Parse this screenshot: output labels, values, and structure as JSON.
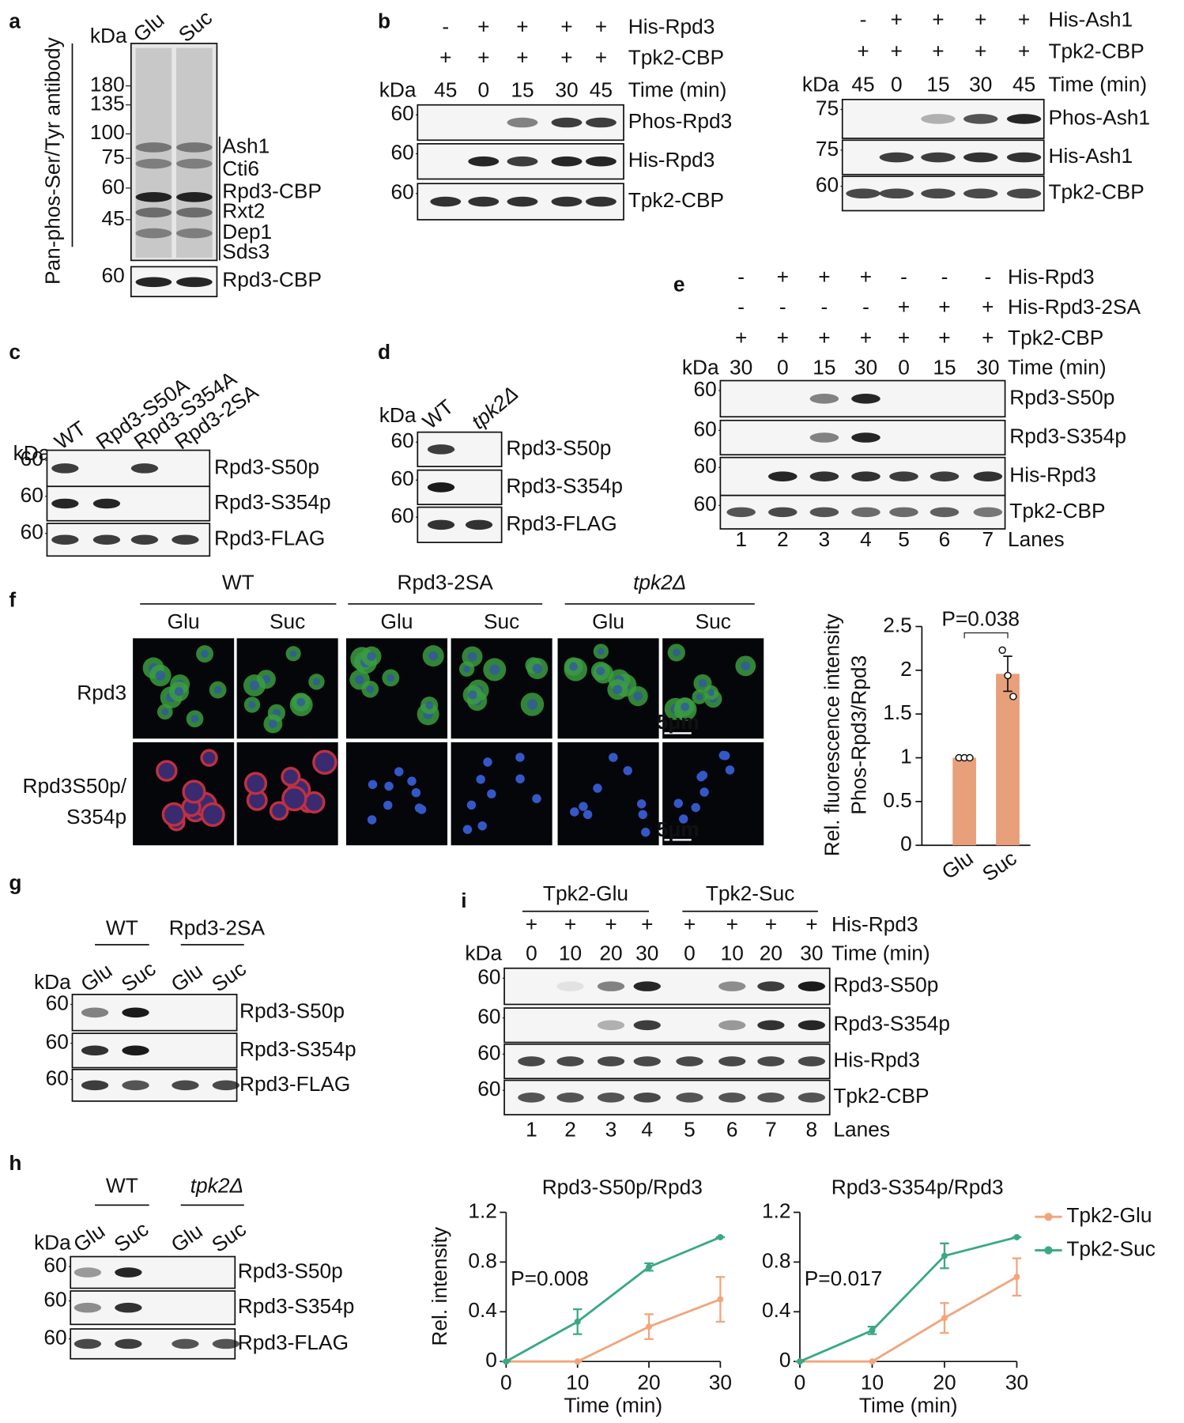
{
  "panels": {
    "a": {
      "label": "a",
      "antibody": "Pan-phos-Ser/Tyr antibody",
      "kda": "kDa",
      "lanes": [
        "Glu",
        "Suc"
      ],
      "markers": [
        "180",
        "135",
        "100",
        "75",
        "60",
        "45"
      ],
      "bands": [
        "Ash1",
        "Cti6",
        "Rpd3-CBP",
        "Rxt2",
        "Dep1",
        "Sds3"
      ],
      "loading": {
        "marker": "60",
        "name": "Rpd3-CBP"
      }
    },
    "b": {
      "label": "b",
      "blots": [
        {
          "rows": [
            {
              "signs": [
                "-",
                "+",
                "+",
                "+",
                "+"
              ],
              "name": "His-Rpd3"
            },
            {
              "signs": [
                "+",
                "+",
                "+",
                "+",
                "+"
              ],
              "name": "Tpk2-CBP"
            }
          ],
          "kda": "kDa",
          "times": [
            "45",
            "0",
            "15",
            "30",
            "45"
          ],
          "time_label": "Time (min)",
          "bands": [
            {
              "marker": "60",
              "name": "Phos-Rpd3"
            },
            {
              "marker": "60",
              "name": "His-Rpd3"
            },
            {
              "marker": "60",
              "name": "Tpk2-CBP"
            }
          ]
        },
        {
          "rows": [
            {
              "signs": [
                "-",
                "+",
                "+",
                "+",
                "+"
              ],
              "name": "His-Ash1"
            },
            {
              "signs": [
                "+",
                "+",
                "+",
                "+",
                "+"
              ],
              "name": "Tpk2-CBP"
            }
          ],
          "kda": "kDa",
          "times": [
            "45",
            "0",
            "15",
            "30",
            "45"
          ],
          "time_label": "Time (min)",
          "bands": [
            {
              "marker": "75",
              "name": "Phos-Ash1"
            },
            {
              "marker": "75",
              "name": "His-Ash1"
            },
            {
              "marker": "60",
              "name": "Tpk2-CBP"
            }
          ]
        }
      ]
    },
    "c": {
      "label": "c",
      "kda": "kDa",
      "lanes": [
        "WT",
        "Rpd3-S50A",
        "Rpd3-S354A",
        "Rpd3-2SA"
      ],
      "bands": [
        {
          "marker": "60",
          "name": "Rpd3-S50p"
        },
        {
          "marker": "60",
          "name": "Rpd3-S354p"
        },
        {
          "marker": "60",
          "name": "Rpd3-FLAG"
        }
      ]
    },
    "d": {
      "label": "d",
      "kda": "kDa",
      "lanes": [
        "WT",
        "tpk2Δ"
      ],
      "bands": [
        {
          "marker": "60",
          "name": "Rpd3-S50p"
        },
        {
          "marker": "60",
          "name": "Rpd3-S354p"
        },
        {
          "marker": "60",
          "name": "Rpd3-FLAG"
        }
      ]
    },
    "e": {
      "label": "e",
      "rows": [
        {
          "signs": [
            "-",
            "+",
            "+",
            "+",
            "-",
            "-",
            "-"
          ],
          "name": "His-Rpd3"
        },
        {
          "signs": [
            "-",
            "-",
            "-",
            "-",
            "+",
            "+",
            "+"
          ],
          "name": "His-Rpd3-2SA"
        },
        {
          "signs": [
            "+",
            "+",
            "+",
            "+",
            "+",
            "+",
            "+"
          ],
          "name": "Tpk2-CBP"
        }
      ],
      "kda": "kDa",
      "times": [
        "30",
        "0",
        "15",
        "30",
        "0",
        "15",
        "30"
      ],
      "time_label": "Time (min)",
      "bands": [
        {
          "marker": "60",
          "name": "Rpd3-S50p"
        },
        {
          "marker": "60",
          "name": "Rpd3-S354p"
        },
        {
          "marker": "60",
          "name": "His-Rpd3"
        },
        {
          "marker": "60",
          "name": "Tpk2-CBP"
        }
      ],
      "lane_numbers": [
        "1",
        "2",
        "3",
        "4",
        "5",
        "6",
        "7"
      ],
      "lanes_label": "Lanes"
    },
    "f": {
      "label": "f",
      "groups": [
        {
          "name": "WT",
          "conditions": [
            "Glu",
            "Suc"
          ]
        },
        {
          "name": "Rpd3-2SA",
          "conditions": [
            "Glu",
            "Suc"
          ]
        },
        {
          "name": "tpk2Δ",
          "conditions": [
            "Glu",
            "Suc"
          ]
        }
      ],
      "rows": [
        {
          "lines": [
            "Rpd3"
          ]
        },
        {
          "lines": [
            "Rpd3S50p/",
            "S354p"
          ]
        }
      ],
      "scale_bar": "5μm"
    },
    "g": {
      "label": "g",
      "groups": [
        {
          "name": "WT",
          "lanes": [
            "Glu",
            "Suc"
          ]
        },
        {
          "name": "Rpd3-2SA",
          "lanes": [
            "Glu",
            "Suc"
          ]
        }
      ],
      "kda": "kDa",
      "bands": [
        {
          "marker": "60",
          "name": "Rpd3-S50p"
        },
        {
          "marker": "60",
          "name": "Rpd3-S354p"
        },
        {
          "marker": "60",
          "name": "Rpd3-FLAG"
        }
      ]
    },
    "h": {
      "label": "h",
      "groups": [
        {
          "name": "WT",
          "lanes": [
            "Glu",
            "Suc"
          ]
        },
        {
          "name": "tpk2Δ",
          "lanes": [
            "Glu",
            "Suc"
          ]
        }
      ],
      "kda": "kDa",
      "bands": [
        {
          "marker": "60",
          "name": "Rpd3-S50p"
        },
        {
          "marker": "60",
          "name": "Rpd3-S354p"
        },
        {
          "marker": "60",
          "name": "Rpd3-FLAG"
        }
      ]
    },
    "i": {
      "label": "i",
      "groups": [
        "Tpk2-Glu",
        "Tpk2-Suc"
      ],
      "rows": [
        {
          "signs": [
            "+",
            "+",
            "+",
            "+",
            "+",
            "+",
            "+",
            "+"
          ],
          "name": "His-Rpd3"
        }
      ],
      "kda": "kDa",
      "times": [
        "0",
        "10",
        "20",
        "30",
        "0",
        "10",
        "20",
        "30"
      ],
      "time_label": "Time (min)",
      "bands": [
        {
          "marker": "60",
          "name": "Rpd3-S50p"
        },
        {
          "marker": "60",
          "name": "Rpd3-S354p"
        },
        {
          "marker": "60",
          "name": "His-Rpd3"
        },
        {
          "marker": "60",
          "name": "Tpk2-CBP"
        }
      ],
      "lane_numbers": [
        "1",
        "2",
        "3",
        "4",
        "5",
        "6",
        "7",
        "8"
      ],
      "lanes_label": "Lanes"
    }
  },
  "chart_data": [
    {
      "type": "bar",
      "ylabel": [
        "Rel. fluorescence intensity",
        "Phos-Rpd3/Rpd3"
      ],
      "categories": [
        "Glu",
        "Suc"
      ],
      "values": [
        1,
        1.96
      ],
      "errors": [
        0,
        0.2
      ],
      "points": [
        [
          1,
          1,
          1
        ],
        [
          2.23,
          1.94,
          1.7
        ]
      ],
      "color": "#e8a07a",
      "ylim": [
        0,
        2.5
      ],
      "yticks": [
        0,
        0.5,
        1,
        1.5,
        2,
        2.5
      ],
      "annotation": "P=0.038"
    },
    {
      "type": "line",
      "title": "Rpd3-S50p/Rpd3",
      "ylabel": "Rel. intensity",
      "xlabel": "Time (min)",
      "annotation": "P=0.008",
      "x": [
        0,
        10,
        20,
        30
      ],
      "xlim": [
        0,
        30
      ],
      "xticks": [
        0,
        10,
        20,
        30
      ],
      "ylim": [
        0,
        1.2
      ],
      "yticks": [
        0,
        0.4,
        0.8,
        1.2
      ],
      "series": [
        {
          "color": "#f2a57c",
          "values": [
            0,
            0,
            0.28,
            0.5
          ],
          "errors": [
            0,
            0,
            0.1,
            0.18
          ]
        },
        {
          "color": "#3aa983",
          "values": [
            0,
            0.32,
            0.76,
            1
          ],
          "errors": [
            0,
            0.1,
            0.03,
            0
          ]
        }
      ]
    },
    {
      "type": "line",
      "title": "Rpd3-S354p/Rpd3",
      "xlabel": "Time (min)",
      "annotation": "P=0.017",
      "legend": "right",
      "x": [
        0,
        10,
        20,
        30
      ],
      "xlim": [
        0,
        30
      ],
      "xticks": [
        0,
        10,
        20,
        30
      ],
      "ylim": [
        0,
        1.2
      ],
      "yticks": [
        0,
        0.4,
        0.8,
        1.2
      ],
      "series": [
        {
          "name": "Tpk2-Glu",
          "color": "#f2a57c",
          "values": [
            0,
            0,
            0.35,
            0.68
          ],
          "errors": [
            0,
            0,
            0.12,
            0.15
          ]
        },
        {
          "name": "Tpk2-Suc",
          "color": "#3aa983",
          "values": [
            0,
            0.25,
            0.85,
            1
          ],
          "errors": [
            0,
            0.03,
            0.1,
            0
          ]
        }
      ]
    }
  ]
}
